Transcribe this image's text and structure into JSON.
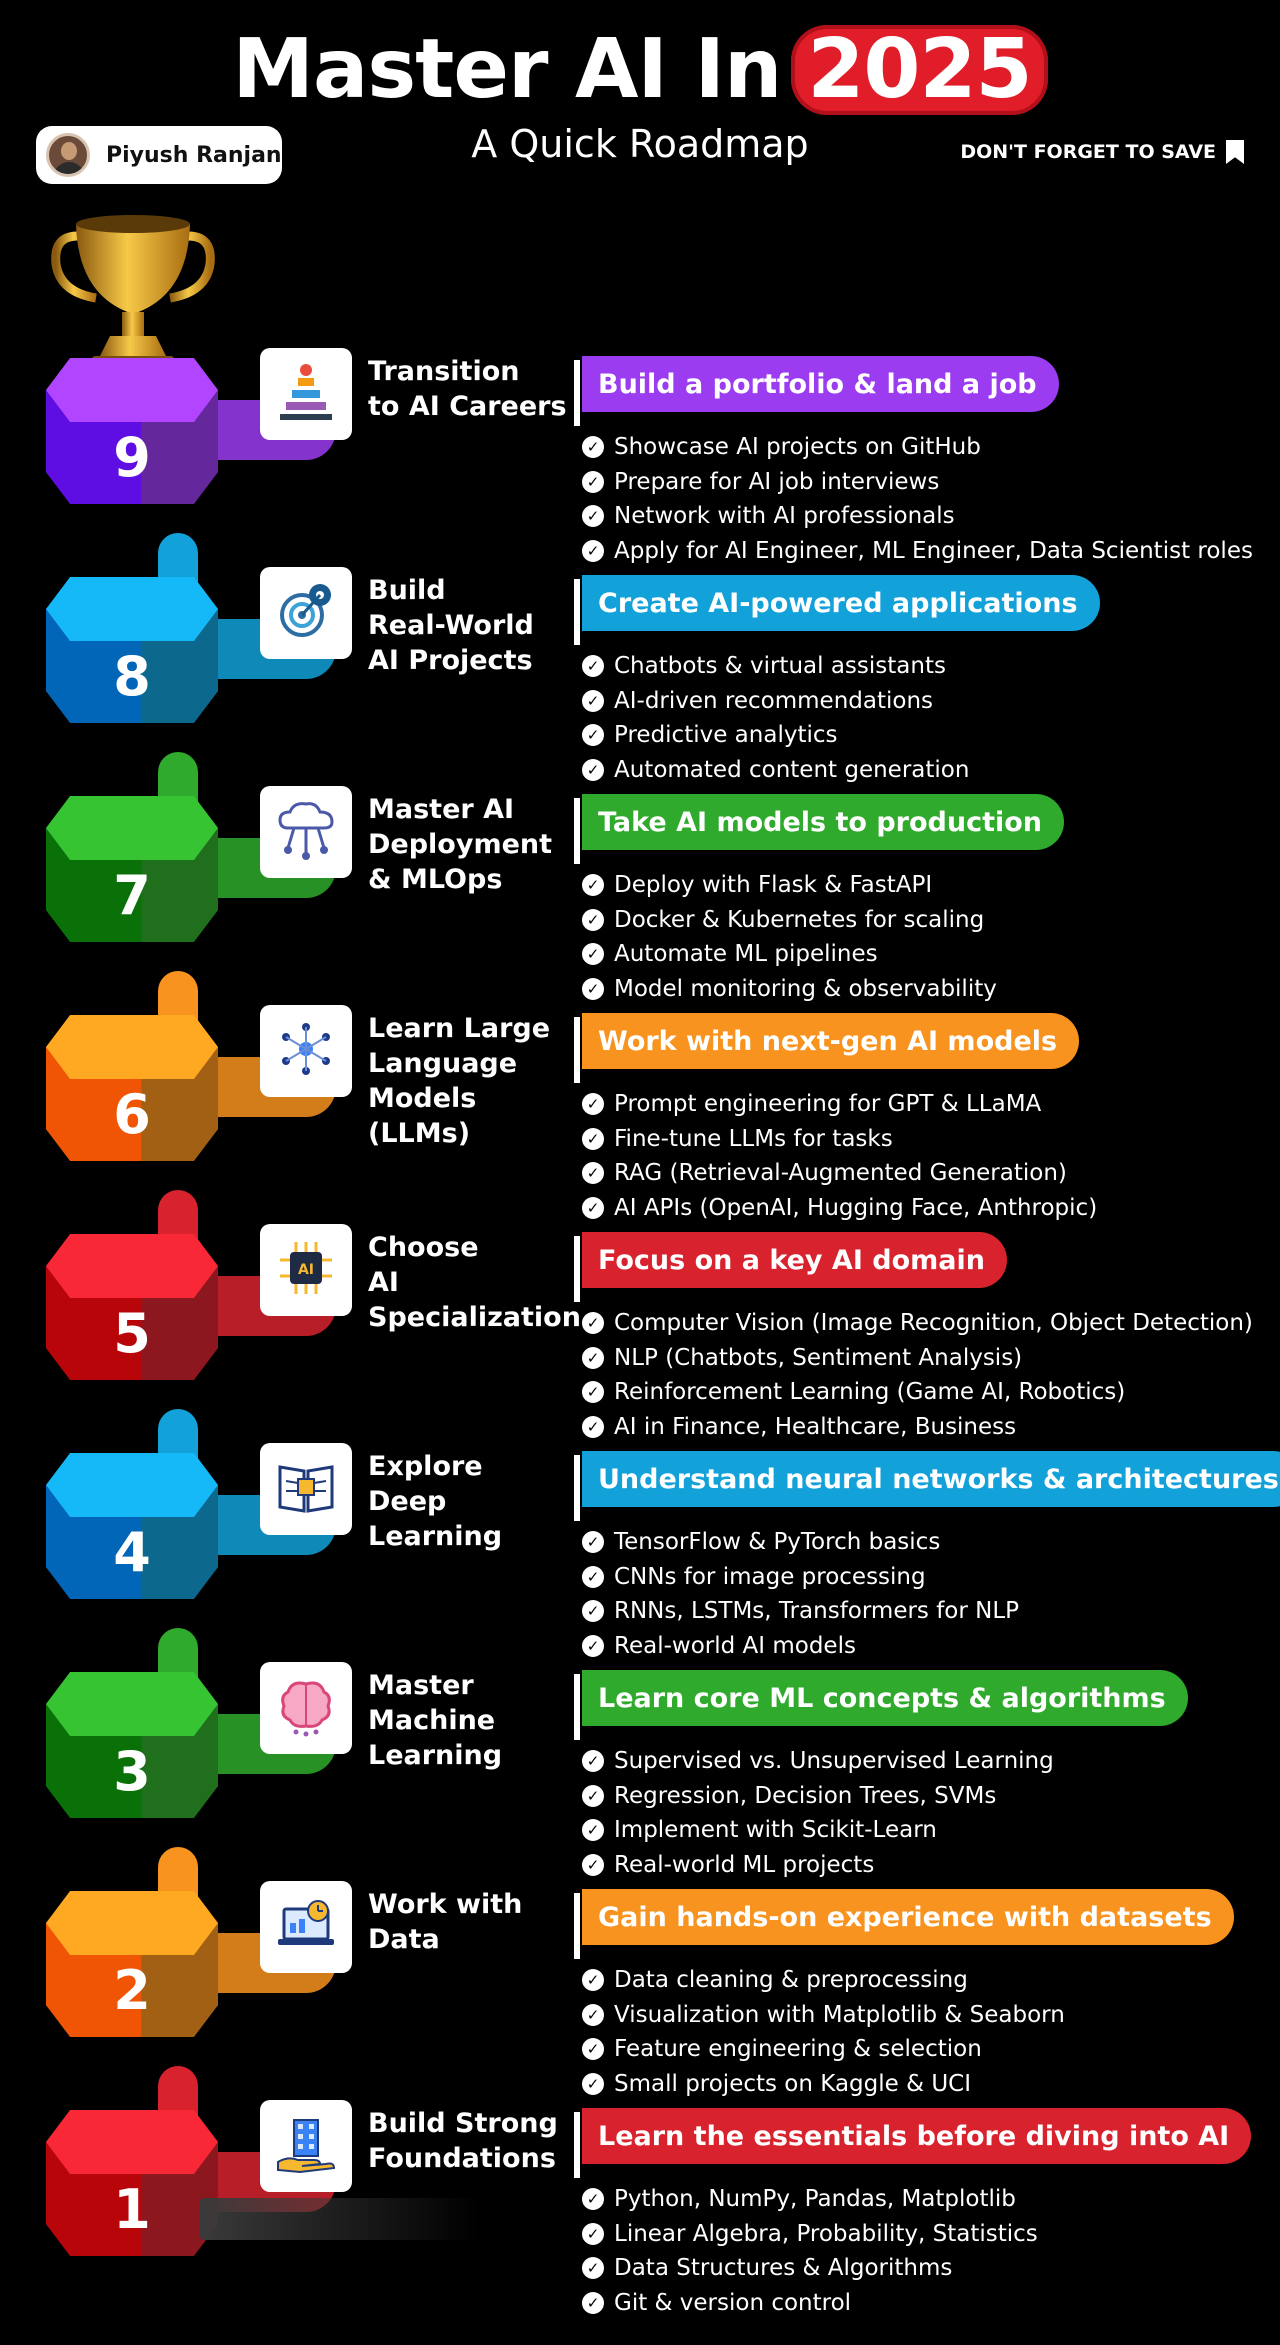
{
  "header": {
    "title_main": "Master AI In",
    "title_year": "2025",
    "subtitle": "A Quick Roadmap",
    "author_name": "Piyush Ranjan",
    "save_text": "DON'T FORGET TO SAVE"
  },
  "colors": {
    "purple": "#9b3cf0",
    "blue": "#12a1d8",
    "green": "#2faa2c",
    "orange": "#f7931e",
    "red": "#d8232f"
  },
  "steps": [
    {
      "number": "9",
      "title_lines": [
        "Transition",
        "to AI Careers"
      ],
      "headline": "Build a portfolio & land a job",
      "color": "#9b3cf0",
      "icon": "career-ladder-icon",
      "bullets": [
        "Showcase AI projects on GitHub",
        "Prepare for AI job interviews",
        "Network with AI professionals",
        "Apply for AI Engineer, ML Engineer, Data Scientist roles"
      ]
    },
    {
      "number": "8",
      "title_lines": [
        "Build",
        "Real-World",
        "AI Projects"
      ],
      "headline": "Create AI-powered applications",
      "color": "#12a1d8",
      "icon": "target-gear-icon",
      "bullets": [
        "Chatbots & virtual assistants",
        "AI-driven recommendations",
        "Predictive analytics",
        "Automated content generation"
      ]
    },
    {
      "number": "7",
      "title_lines": [
        "Master AI",
        "Deployment",
        "& MLOps"
      ],
      "headline": "Take AI models to production",
      "color": "#2faa2c",
      "icon": "cloud-network-icon",
      "bullets": [
        "Deploy with Flask & FastAPI",
        "Docker & Kubernetes for scaling",
        "Automate ML pipelines",
        "Model monitoring & observability"
      ]
    },
    {
      "number": "6",
      "title_lines": [
        "Learn Large",
        "Language",
        "Models",
        "(LLMs)"
      ],
      "headline": "Work with next-gen AI models",
      "color": "#f7931e",
      "icon": "neural-node-icon",
      "bullets": [
        "Prompt engineering for GPT & LLaMA",
        "Fine-tune LLMs for tasks",
        "RAG (Retrieval-Augmented Generation)",
        "AI APIs (OpenAI, Hugging Face, Anthropic)"
      ]
    },
    {
      "number": "5",
      "title_lines": [
        "Choose",
        "AI",
        "Specialization"
      ],
      "headline": "Focus on a key AI domain",
      "color": "#d8232f",
      "icon": "ai-chip-icon",
      "bullets": [
        "Computer Vision (Image Recognition, Object Detection)",
        "NLP (Chatbots, Sentiment Analysis)",
        "Reinforcement Learning (Game AI, Robotics)",
        "AI in Finance, Healthcare, Business"
      ]
    },
    {
      "number": "4",
      "title_lines": [
        "Explore",
        "Deep",
        "Learning"
      ],
      "headline": "Understand neural networks & architectures",
      "color": "#12a1d8",
      "icon": "book-circuit-icon",
      "bullets": [
        "TensorFlow & PyTorch basics",
        "CNNs for image processing",
        "RNNs, LSTMs, Transformers for NLP",
        "Real-world AI models"
      ]
    },
    {
      "number": "3",
      "title_lines": [
        "Master",
        "Machine",
        "Learning"
      ],
      "headline": "Learn core ML concepts & algorithms",
      "color": "#2faa2c",
      "icon": "brain-icon",
      "bullets": [
        "Supervised vs. Unsupervised Learning",
        "Regression, Decision Trees, SVMs",
        "Implement with Scikit-Learn",
        "Real-world ML projects"
      ]
    },
    {
      "number": "2",
      "title_lines": [
        "Work with",
        "Data"
      ],
      "headline": "Gain hands-on experience with datasets",
      "color": "#f7931e",
      "icon": "laptop-clock-icon",
      "bullets": [
        "Data cleaning & preprocessing",
        "Visualization with Matplotlib & Seaborn",
        "Feature engineering & selection",
        "Small projects on Kaggle & UCI"
      ]
    },
    {
      "number": "1",
      "title_lines": [
        "Build Strong",
        "Foundations"
      ],
      "headline": "Learn the essentials before diving into AI",
      "color": "#d8232f",
      "icon": "building-hand-icon",
      "bullets": [
        "Python, NumPy, Pandas, Matplotlib",
        "Linear Algebra, Probability, Statistics",
        "Data Structures & Algorithms",
        "Git & version control"
      ]
    }
  ]
}
